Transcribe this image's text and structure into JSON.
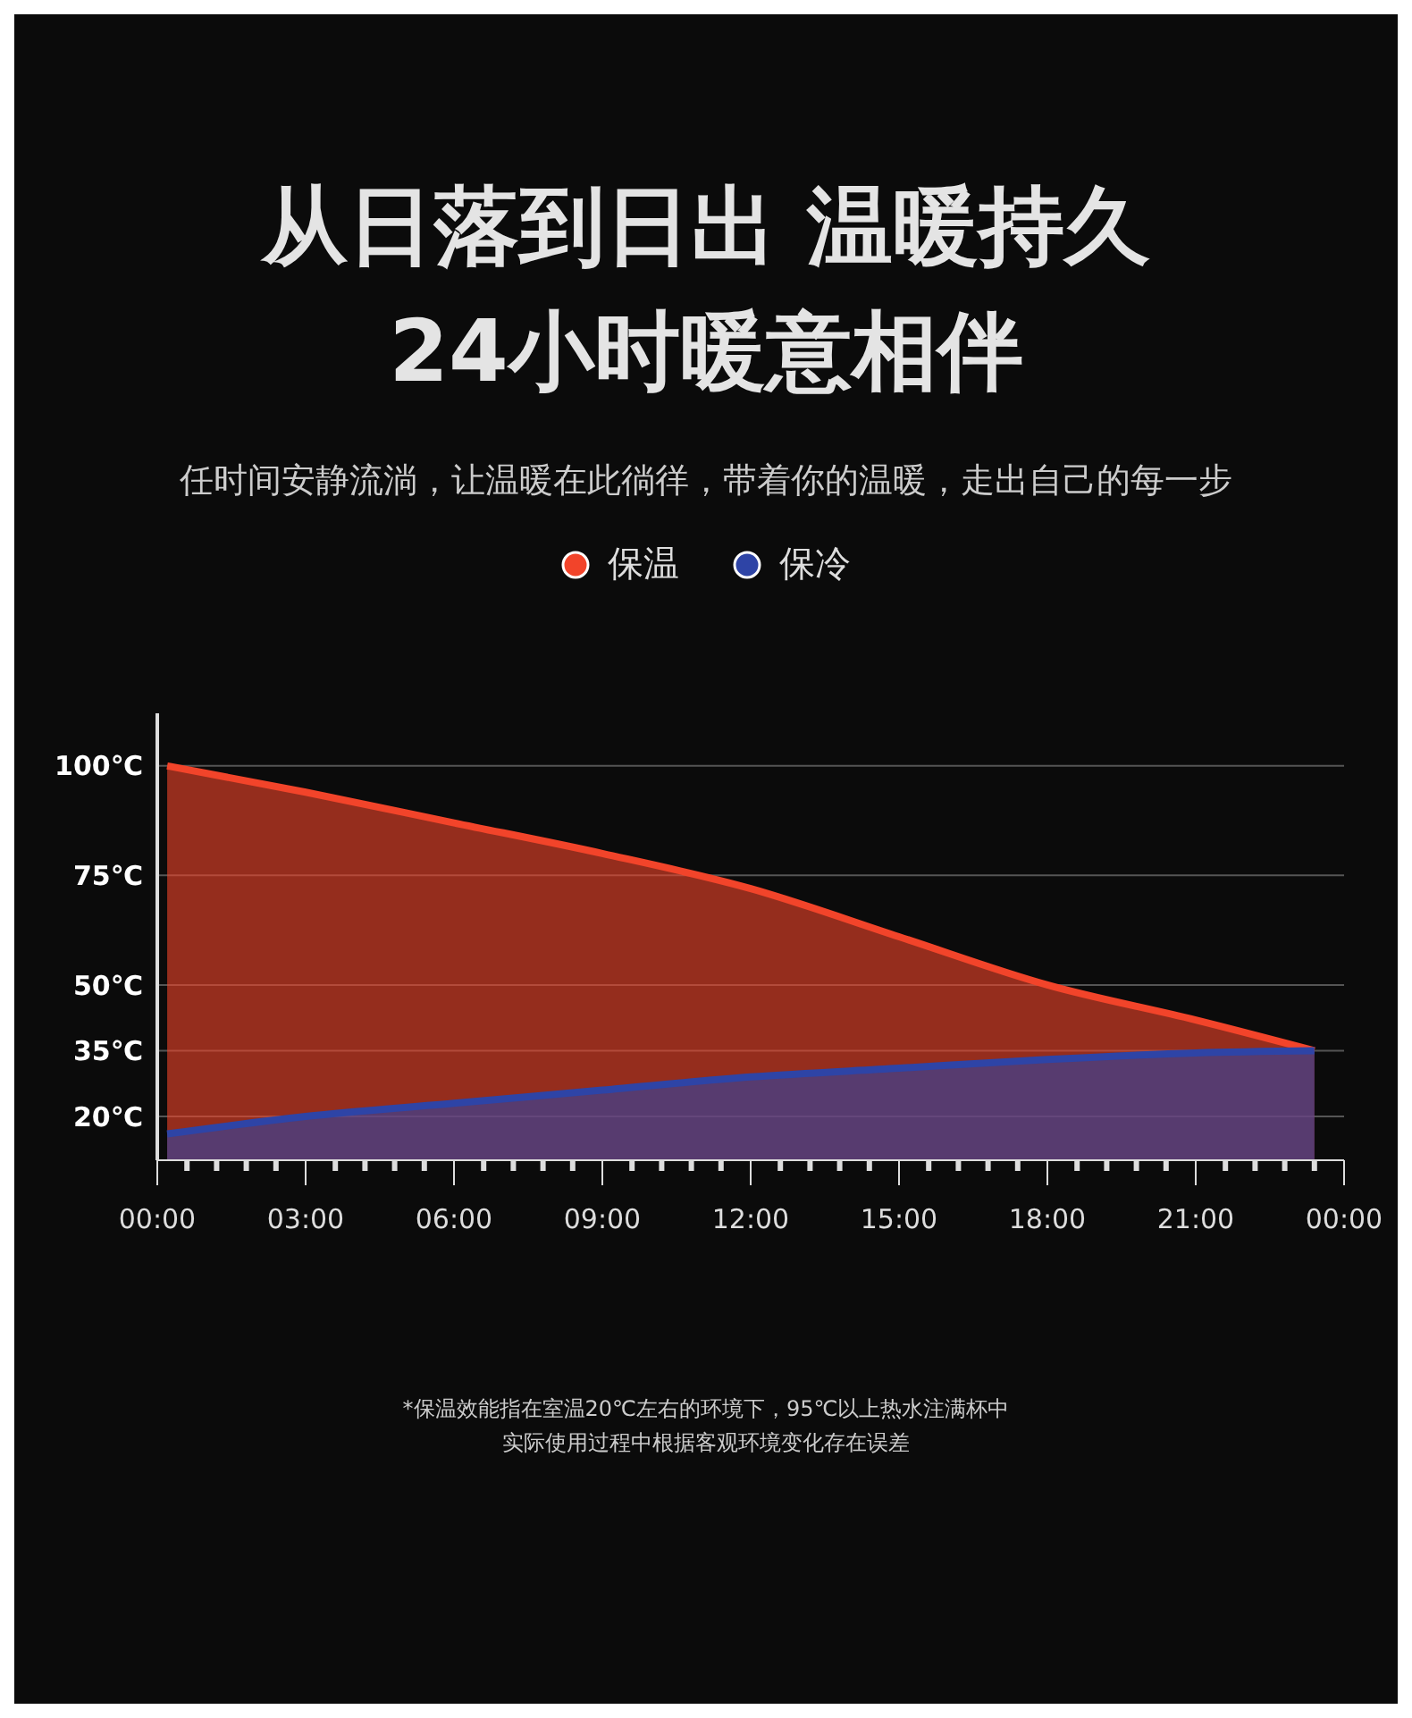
{
  "chart_data": {
    "type": "area",
    "title": "从日落到日出 温暖持久\n24小时暖意相伴",
    "subtitle": "任时间安静流淌，让温暖在此徜徉，带着你的温暖，走出自己的每一步",
    "x": [
      0.2,
      3,
      6,
      9,
      12,
      15,
      18,
      21,
      23.4
    ],
    "series": [
      {
        "name": "保温",
        "color": "#f2442a",
        "values": [
          100,
          94,
          87,
          80,
          72,
          61,
          50,
          42,
          35
        ]
      },
      {
        "name": "保冷",
        "color": "#2e44a6",
        "values": [
          16,
          20,
          23,
          26,
          29,
          31,
          33,
          34.5,
          35
        ]
      }
    ],
    "xlim": [
      0,
      24
    ],
    "xticks": [
      {
        "value": 0,
        "label": "00:00"
      },
      {
        "value": 0.6,
        "label": null
      },
      {
        "value": 1.2,
        "label": null
      },
      {
        "value": 1.8,
        "label": null
      },
      {
        "value": 2.4,
        "label": null
      },
      {
        "value": 3,
        "label": "03:00"
      },
      {
        "value": 3.6,
        "label": null
      },
      {
        "value": 4.2,
        "label": null
      },
      {
        "value": 4.8,
        "label": null
      },
      {
        "value": 5.4,
        "label": null
      },
      {
        "value": 6,
        "label": "06:00"
      },
      {
        "value": 6.6,
        "label": null
      },
      {
        "value": 7.2,
        "label": null
      },
      {
        "value": 7.8,
        "label": null
      },
      {
        "value": 8.4,
        "label": null
      },
      {
        "value": 9,
        "label": "09:00"
      },
      {
        "value": 9.6,
        "label": null
      },
      {
        "value": 10.2,
        "label": null
      },
      {
        "value": 10.8,
        "label": null
      },
      {
        "value": 11.4,
        "label": null
      },
      {
        "value": 12,
        "label": "12:00"
      },
      {
        "value": 12.6,
        "label": null
      },
      {
        "value": 13.2,
        "label": null
      },
      {
        "value": 13.8,
        "label": null
      },
      {
        "value": 14.4,
        "label": null
      },
      {
        "value": 15,
        "label": "15:00"
      },
      {
        "value": 15.6,
        "label": null
      },
      {
        "value": 16.2,
        "label": null
      },
      {
        "value": 16.8,
        "label": null
      },
      {
        "value": 17.4,
        "label": null
      },
      {
        "value": 18,
        "label": "18:00"
      },
      {
        "value": 18.6,
        "label": null
      },
      {
        "value": 19.2,
        "label": null
      },
      {
        "value": 19.8,
        "label": null
      },
      {
        "value": 20.4,
        "label": null
      },
      {
        "value": 21,
        "label": "21:00"
      },
      {
        "value": 21.6,
        "label": null
      },
      {
        "value": 22.2,
        "label": null
      },
      {
        "value": 22.8,
        "label": null
      },
      {
        "value": 23.4,
        "label": null
      },
      {
        "value": 24,
        "label": "00:00"
      }
    ],
    "ylim": [
      10,
      112
    ],
    "yticks": [
      {
        "value": 20,
        "label": "20℃"
      },
      {
        "value": 35,
        "label": "35℃"
      },
      {
        "value": 50,
        "label": "50℃"
      },
      {
        "value": 75,
        "label": "75℃"
      },
      {
        "value": 100,
        "label": "100℃"
      }
    ],
    "grid": "y",
    "legend": "top",
    "marker": "none",
    "line_style": "solid",
    "annotations": [
      "*保温效能指在室温20℃左右的环境下，95℃以上热水注满杯中",
      "实际使用过程中根据客观环境变化存在误差"
    ]
  }
}
